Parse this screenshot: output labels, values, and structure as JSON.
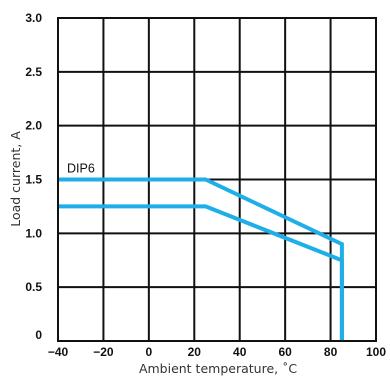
{
  "chart_data": {
    "type": "line",
    "title": "",
    "xlabel": "Ambient  temperature,  ˚C",
    "ylabel": "Load  current,  A",
    "xlim": [
      -40,
      100
    ],
    "ylim": [
      0,
      3.0
    ],
    "grid": true,
    "x_ticks": [
      -40,
      -20,
      0,
      20,
      40,
      60,
      80,
      100
    ],
    "x_tick_labels": [
      "−40",
      "−20",
      "0",
      "20",
      "40",
      "60",
      "80",
      "100"
    ],
    "y_ticks": [
      0,
      0.5,
      1.0,
      1.5,
      2.0,
      2.5,
      3.0
    ],
    "y_tick_labels": [
      "0",
      "0.5",
      "1.0",
      "1.5",
      "2.0",
      "2.5",
      "3.0"
    ],
    "series_color": "#1eaee8",
    "series": [
      {
        "name": "DIP6",
        "x": [
          -40,
          25,
          85,
          85
        ],
        "y": [
          1.5,
          1.5,
          0.9,
          0
        ]
      },
      {
        "x": [
          -40,
          25,
          85,
          85
        ],
        "y": [
          1.25,
          1.25,
          0.75,
          0
        ]
      }
    ],
    "annotations": [
      {
        "text": "DIP6",
        "series": 0
      }
    ]
  }
}
